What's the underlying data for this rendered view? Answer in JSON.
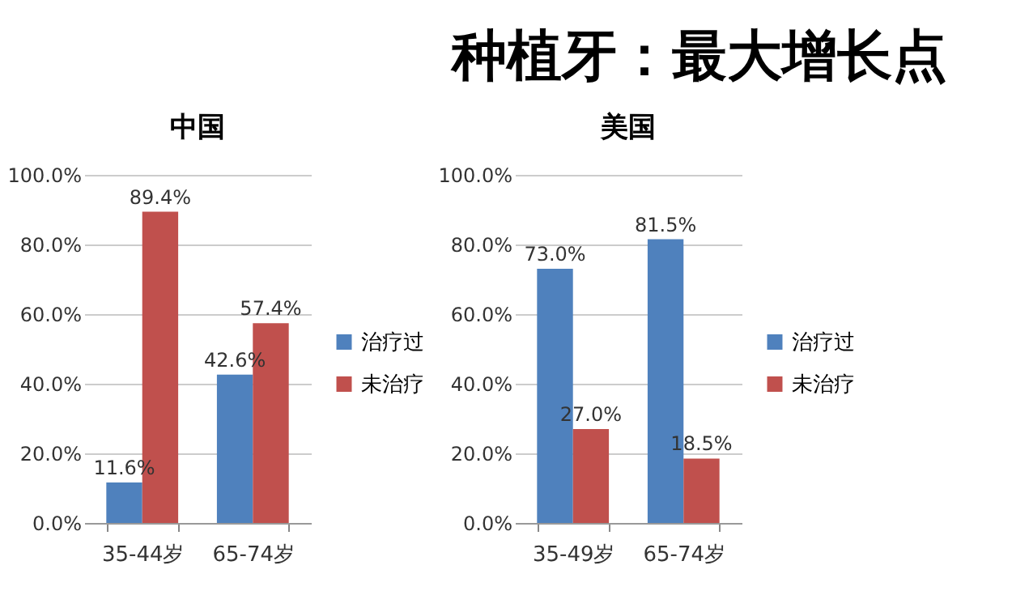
{
  "chart_data": [
    {
      "type": "bar",
      "title": "中国",
      "annotations": [
        "种植牙：最大增长点"
      ],
      "categories": [
        "35-44岁",
        "65-74岁"
      ],
      "series": [
        {
          "name": "治疗过",
          "color": "#4f81bd",
          "values": [
            11.6,
            42.6
          ],
          "value_labels": [
            "11.6%",
            "42.6%"
          ]
        },
        {
          "name": "未治疗",
          "color": "#c0504d",
          "values": [
            89.4,
            57.4
          ],
          "value_labels": [
            "89.4%",
            "57.4%"
          ]
        }
      ],
      "ylim": [
        0,
        100
      ],
      "yticks": [
        {
          "value": 0,
          "label": "0.0%"
        },
        {
          "value": 20,
          "label": "20.0%"
        },
        {
          "value": 40,
          "label": "40.0%"
        },
        {
          "value": 60,
          "label": "60.0%"
        },
        {
          "value": 80,
          "label": "80.0%"
        },
        {
          "value": 100,
          "label": "100.0%"
        }
      ],
      "grid": "y",
      "legend": "right"
    },
    {
      "type": "bar",
      "title": "美国",
      "categories": [
        "35-49岁",
        "65-74岁"
      ],
      "series": [
        {
          "name": "治疗过",
          "color": "#4f81bd",
          "values": [
            73.0,
            81.5
          ],
          "value_labels": [
            "73.0%",
            "81.5%"
          ]
        },
        {
          "name": "未治疗",
          "color": "#c0504d",
          "values": [
            27.0,
            18.5
          ],
          "value_labels": [
            "27.0%",
            "18.5%"
          ]
        }
      ],
      "ylim": [
        0,
        100
      ],
      "yticks": [
        {
          "value": 0,
          "label": "0.0%"
        },
        {
          "value": 20,
          "label": "20.0%"
        },
        {
          "value": 40,
          "label": "40.0%"
        },
        {
          "value": 60,
          "label": "60.0%"
        },
        {
          "value": 80,
          "label": "80.0%"
        },
        {
          "value": 100,
          "label": "100.0%"
        }
      ],
      "grid": "y",
      "legend": "right"
    }
  ]
}
